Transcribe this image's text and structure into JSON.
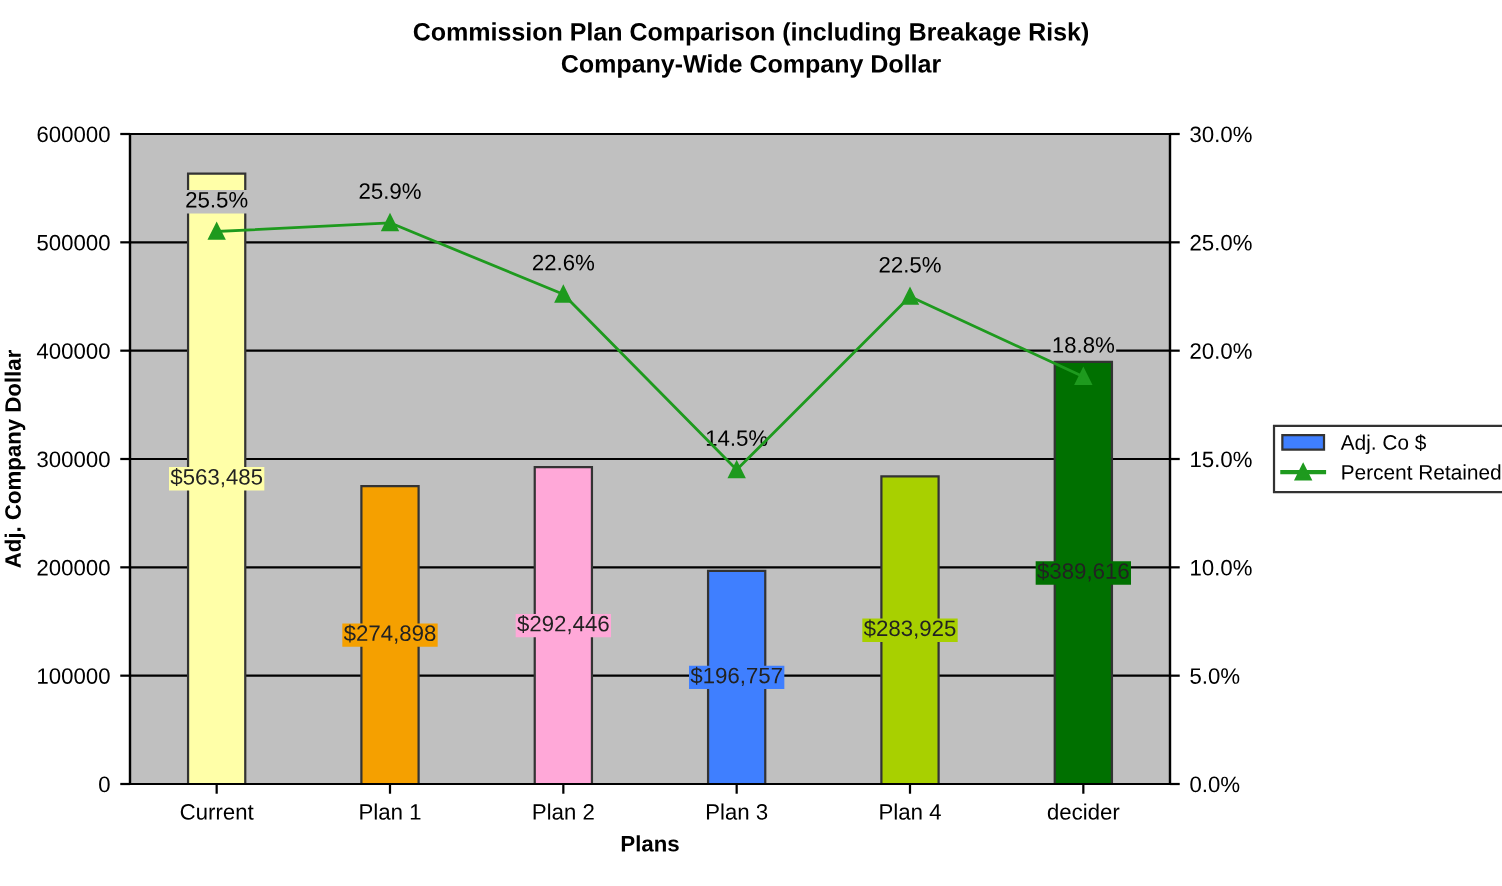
{
  "chart_data": {
    "type": "bar",
    "title": "Commission Plan Comparison (including Breakage Risk)",
    "subtitle": "Company-Wide Company Dollar",
    "xlabel": "Plans",
    "ylabel": "Adj. Company Dollar",
    "categories": [
      "Current",
      "Plan 1",
      "Plan 2",
      "Plan 3",
      "Plan 4",
      "decider"
    ],
    "series": [
      {
        "name": "Adj. Co $",
        "color": "#3f7fff",
        "colors": [
          "#ffffa8",
          "#f5a000",
          "#ffa8d8",
          "#3f7fff",
          "#a8d000",
          "#007000"
        ],
        "values": [
          563485,
          274898,
          292446,
          196757,
          283925,
          389616
        ],
        "value_labels": [
          "$563,485",
          "$274,898",
          "$292,446",
          "$196,757",
          "$283,925",
          "$389,616"
        ]
      },
      {
        "name": "Percent Retained",
        "type": "line",
        "axis": "y2",
        "color": "#1e9a1e",
        "marker": "triangle",
        "values": [
          25.5,
          25.9,
          22.6,
          14.5,
          22.5,
          18.8
        ],
        "value_labels": [
          "25.5%",
          "25.9%",
          "22.6%",
          "14.5%",
          "22.5%",
          "18.8%"
        ]
      }
    ],
    "ylim": [
      0,
      600000
    ],
    "yticks": [
      0,
      100000,
      200000,
      300000,
      400000,
      500000,
      600000
    ],
    "y2lim": [
      0,
      30
    ],
    "y2ticks": [
      {
        "value": 0,
        "label": "0.0%"
      },
      {
        "value": 5,
        "label": "5.0%"
      },
      {
        "value": 10,
        "label": "10.0%"
      },
      {
        "value": 15,
        "label": "15.0%"
      },
      {
        "value": 20,
        "label": "20.0%"
      },
      {
        "value": 25,
        "label": "25.0%"
      },
      {
        "value": 30,
        "label": "30.0%"
      }
    ],
    "grid": "y",
    "legend": "right"
  }
}
